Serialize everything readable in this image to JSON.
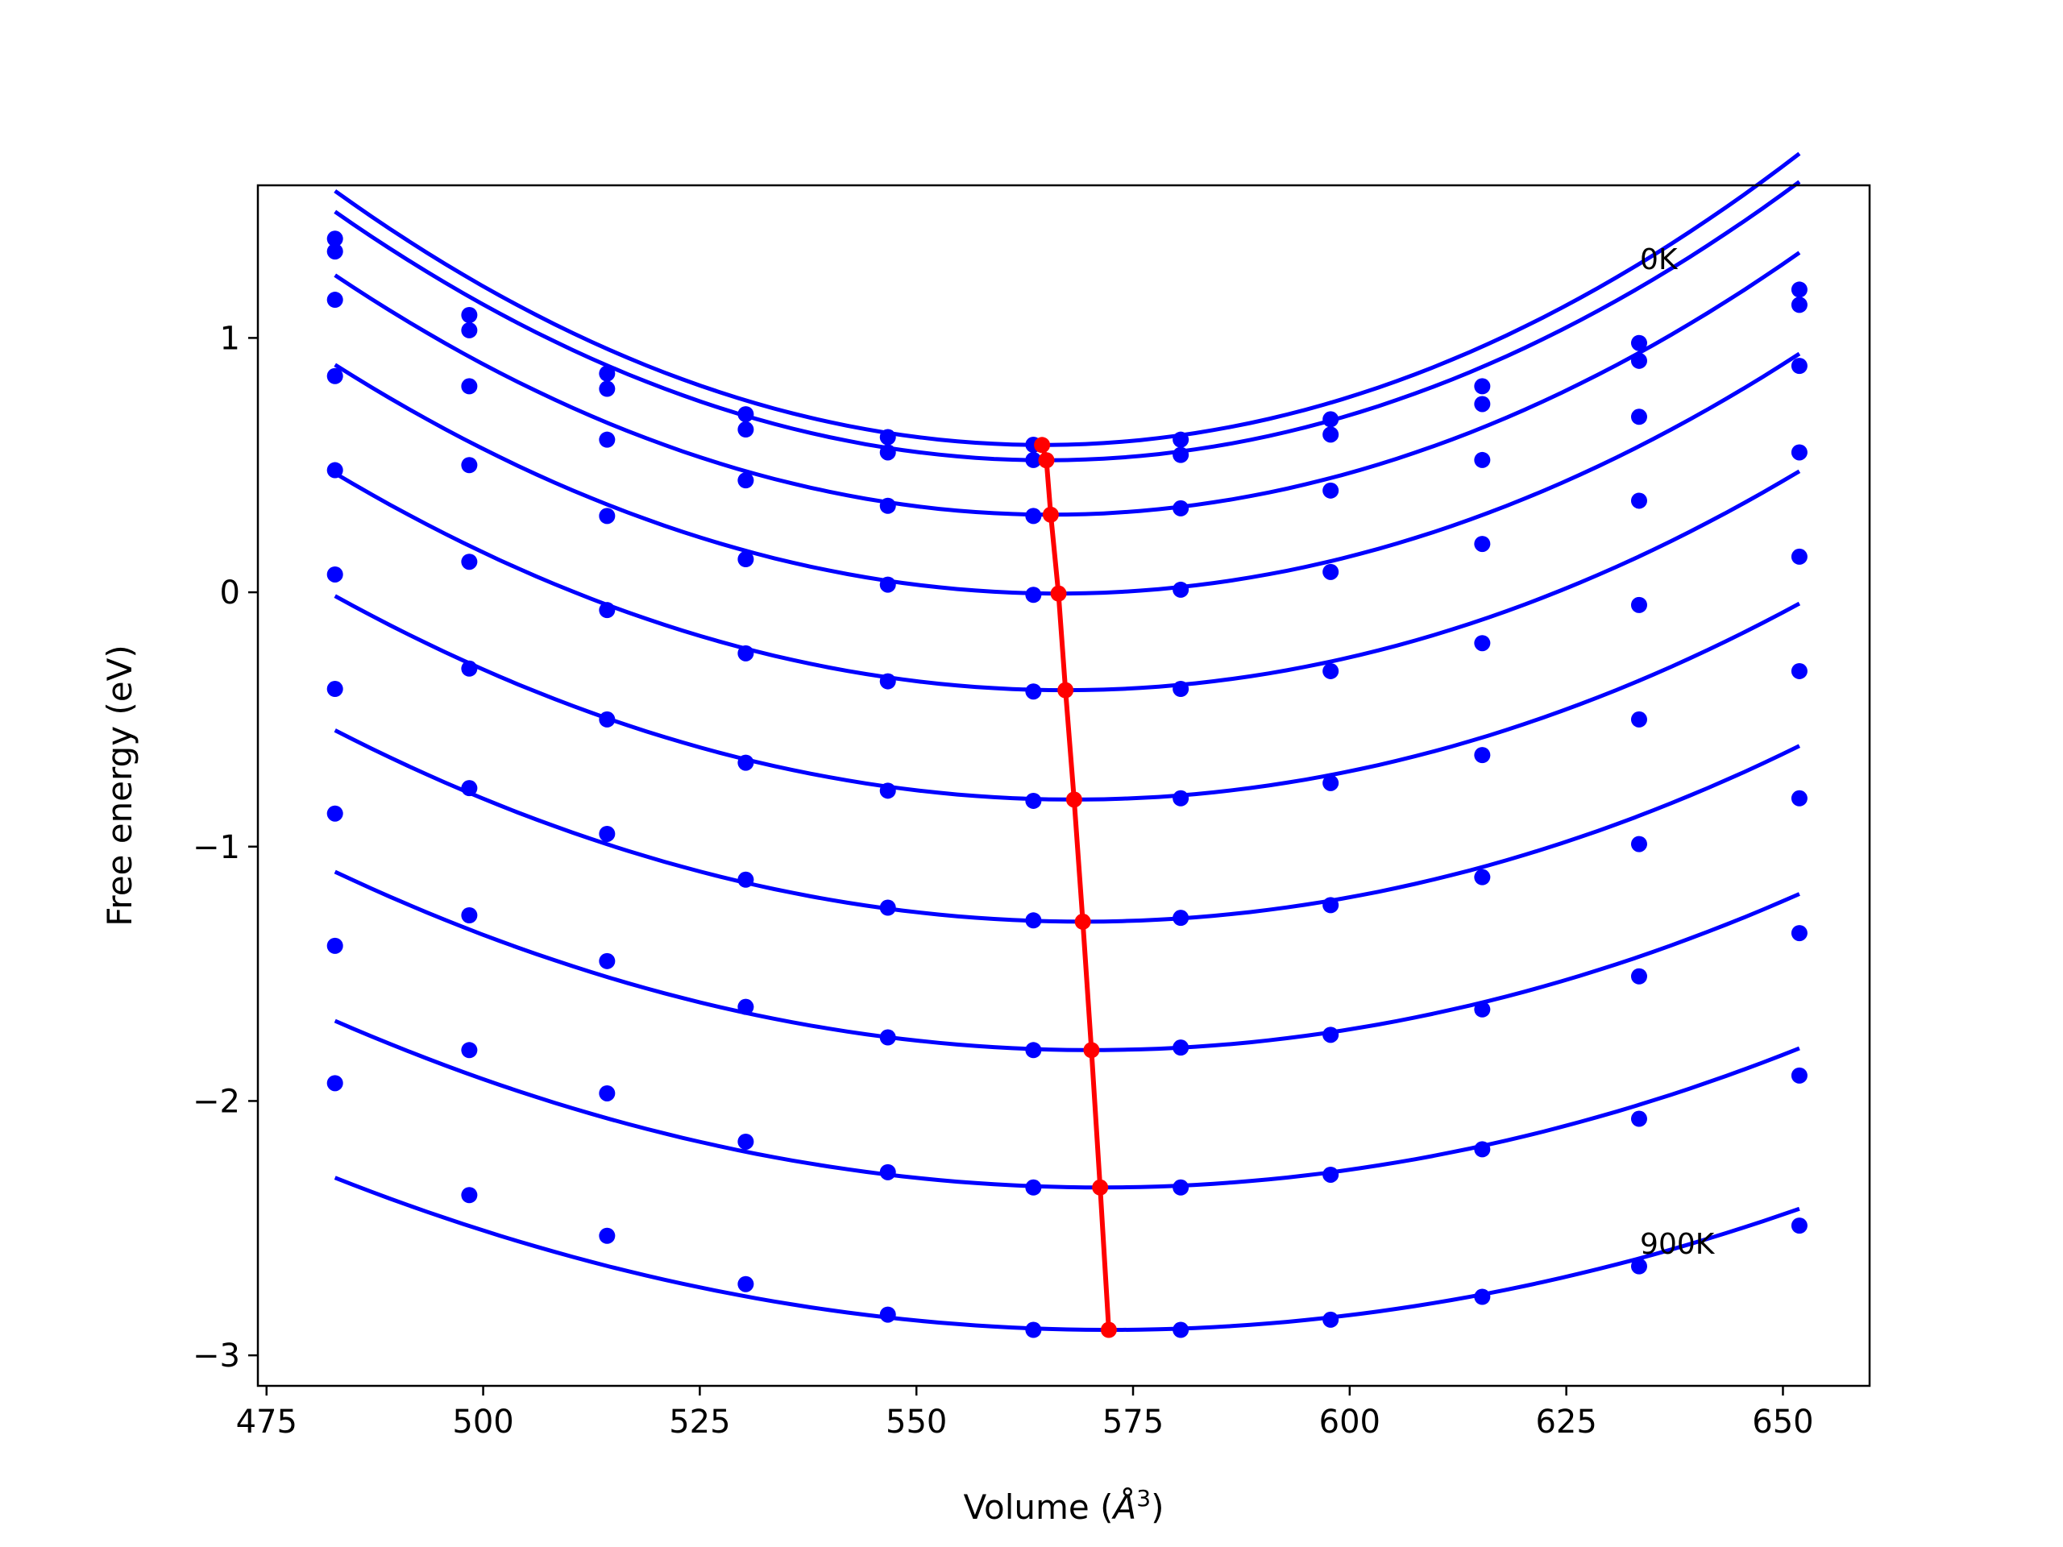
{
  "chart_data": {
    "type": "line",
    "xlabel": "Volume (",
    "xlabel_unit": "Å",
    "xlabel_exp": "3",
    "xlabel_close": ")",
    "ylabel": "Free energy (eV)",
    "xlim": [
      474,
      660
    ],
    "ylim": [
      -3.12,
      1.6
    ],
    "xticks": [
      475,
      500,
      525,
      550,
      575,
      600,
      625,
      650
    ],
    "xtick_labels": [
      "475",
      "500",
      "525",
      "550",
      "575",
      "600",
      "625",
      "650"
    ],
    "yticks": [
      -3,
      -2,
      -1,
      0,
      1
    ],
    "ytick_labels": [
      "−3",
      "−2",
      "−1",
      "0",
      "1"
    ],
    "grid": false,
    "volumes": [
      482.9,
      498.4,
      514.3,
      530.3,
      546.7,
      563.5,
      580.5,
      597.8,
      615.3,
      633.4,
      651.9
    ],
    "series": [
      {
        "color": "#0000ff",
        "fit": [
          0.579,
          564.5,
          0.00015
        ],
        "points": [
          1.39,
          1.09,
          0.86,
          0.7,
          0.61,
          0.58,
          0.6,
          0.68,
          0.81,
          0.98,
          1.19
        ]
      },
      {
        "color": "#0000ff",
        "fit": [
          0.519,
          565.0,
          0.000145
        ],
        "points": [
          1.34,
          1.03,
          0.8,
          0.64,
          0.55,
          0.52,
          0.54,
          0.62,
          0.74,
          0.91,
          1.13
        ]
      },
      {
        "color": "#0000ff",
        "fit": [
          0.305,
          565.5,
          0.000138
        ],
        "points": [
          1.15,
          0.81,
          0.6,
          0.44,
          0.34,
          0.3,
          0.33,
          0.4,
          0.52,
          0.69,
          0.89
        ]
      },
      {
        "color": "#0000ff",
        "fit": [
          -0.005,
          566.4,
          0.000129
        ],
        "points": [
          0.85,
          0.5,
          0.3,
          0.13,
          0.03,
          -0.01,
          0.01,
          0.08,
          0.19,
          0.36,
          0.55
        ]
      },
      {
        "color": "#0000ff",
        "fit": [
          -0.385,
          567.2,
          0.00012
        ],
        "points": [
          0.48,
          0.12,
          -0.07,
          -0.24,
          -0.35,
          -0.39,
          -0.38,
          -0.31,
          -0.2,
          -0.05,
          0.14
        ]
      },
      {
        "color": "#0000ff",
        "fit": [
          -0.815,
          568.2,
          0.00011
        ],
        "points": [
          0.07,
          -0.3,
          -0.5,
          -0.67,
          -0.78,
          -0.82,
          -0.81,
          -0.75,
          -0.64,
          -0.5,
          -0.31
        ]
      },
      {
        "color": "#0000ff",
        "fit": [
          -1.295,
          569.2,
          0.000101
        ],
        "points": [
          -0.38,
          -0.77,
          -0.95,
          -1.13,
          -1.24,
          -1.29,
          -1.28,
          -1.23,
          -1.12,
          -0.99,
          -0.81
        ]
      },
      {
        "color": "#0000ff",
        "fit": [
          -1.8,
          570.2,
          9.2e-05
        ],
        "points": [
          -0.87,
          -1.27,
          -1.45,
          -1.63,
          -1.75,
          -1.8,
          -1.79,
          -1.74,
          -1.64,
          -1.51,
          -1.34
        ]
      },
      {
        "color": "#0000ff",
        "fit": [
          -2.34,
          571.2,
          8.4e-05
        ],
        "points": [
          -1.39,
          -1.8,
          -1.97,
          -2.16,
          -2.28,
          -2.34,
          -2.34,
          -2.29,
          -2.19,
          -2.07,
          -1.9
        ]
      },
      {
        "color": "#0000ff",
        "fit": [
          -2.9,
          572.2,
          7.5e-05
        ],
        "points": [
          -1.93,
          -2.37,
          -2.53,
          -2.72,
          -2.84,
          -2.9,
          -2.9,
          -2.86,
          -2.77,
          -2.65,
          -2.49
        ]
      }
    ],
    "minima": {
      "color": "#ff0000",
      "x": [
        564.5,
        565.0,
        565.5,
        566.4,
        567.2,
        568.2,
        569.2,
        570.2,
        571.2,
        572.2
      ],
      "y": [
        0.579,
        0.519,
        0.305,
        -0.005,
        -0.385,
        -0.815,
        -1.295,
        -1.8,
        -2.34,
        -2.9
      ]
    },
    "annotations": [
      {
        "text": "0K",
        "x": 633.5,
        "y": 1.27
      },
      {
        "text": "900K",
        "x": 633.5,
        "y": -2.6
      }
    ]
  }
}
